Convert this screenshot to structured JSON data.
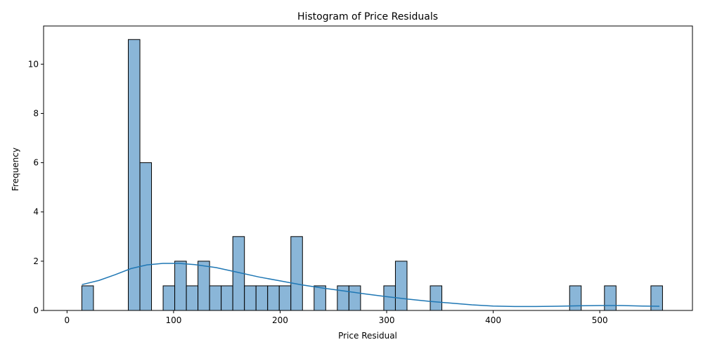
{
  "chart_data": {
    "type": "bar",
    "title": "Histogram of Price Residuals",
    "xlabel": "Price Residual",
    "ylabel": "Frequency",
    "xlim": [
      -22,
      587
    ],
    "ylim": [
      0,
      11.55
    ],
    "x_ticks": [
      0,
      100,
      200,
      300,
      400,
      500
    ],
    "y_ticks": [
      0,
      2,
      4,
      6,
      8,
      10
    ],
    "bin_width": 10.9,
    "bins": [
      {
        "left": 13.9,
        "count": 1
      },
      {
        "left": 57.5,
        "count": 11
      },
      {
        "left": 68.4,
        "count": 6
      },
      {
        "left": 90.2,
        "count": 1
      },
      {
        "left": 101.1,
        "count": 2
      },
      {
        "left": 112.0,
        "count": 1
      },
      {
        "left": 122.9,
        "count": 2
      },
      {
        "left": 133.8,
        "count": 1
      },
      {
        "left": 144.7,
        "count": 1
      },
      {
        "left": 155.6,
        "count": 3
      },
      {
        "left": 166.5,
        "count": 1
      },
      {
        "left": 177.4,
        "count": 1
      },
      {
        "left": 188.3,
        "count": 1
      },
      {
        "left": 199.2,
        "count": 1
      },
      {
        "left": 210.1,
        "count": 3
      },
      {
        "left": 231.9,
        "count": 1
      },
      {
        "left": 253.7,
        "count": 1
      },
      {
        "left": 264.6,
        "count": 1
      },
      {
        "left": 297.3,
        "count": 1
      },
      {
        "left": 308.2,
        "count": 2
      },
      {
        "left": 340.9,
        "count": 1
      },
      {
        "left": 471.7,
        "count": 1
      },
      {
        "left": 504.4,
        "count": 1
      },
      {
        "left": 548.0,
        "count": 1
      }
    ],
    "kde_curve": [
      {
        "x": 14,
        "y": 1.05
      },
      {
        "x": 30,
        "y": 1.22
      },
      {
        "x": 45,
        "y": 1.45
      },
      {
        "x": 60,
        "y": 1.7
      },
      {
        "x": 75,
        "y": 1.85
      },
      {
        "x": 90,
        "y": 1.91
      },
      {
        "x": 105,
        "y": 1.91
      },
      {
        "x": 120,
        "y": 1.86
      },
      {
        "x": 140,
        "y": 1.74
      },
      {
        "x": 160,
        "y": 1.55
      },
      {
        "x": 180,
        "y": 1.36
      },
      {
        "x": 200,
        "y": 1.2
      },
      {
        "x": 220,
        "y": 1.04
      },
      {
        "x": 240,
        "y": 0.91
      },
      {
        "x": 260,
        "y": 0.79
      },
      {
        "x": 280,
        "y": 0.67
      },
      {
        "x": 300,
        "y": 0.56
      },
      {
        "x": 320,
        "y": 0.46
      },
      {
        "x": 340,
        "y": 0.37
      },
      {
        "x": 360,
        "y": 0.3
      },
      {
        "x": 380,
        "y": 0.23
      },
      {
        "x": 400,
        "y": 0.18
      },
      {
        "x": 420,
        "y": 0.16
      },
      {
        "x": 440,
        "y": 0.16
      },
      {
        "x": 460,
        "y": 0.17
      },
      {
        "x": 480,
        "y": 0.19
      },
      {
        "x": 500,
        "y": 0.2
      },
      {
        "x": 520,
        "y": 0.2
      },
      {
        "x": 540,
        "y": 0.18
      },
      {
        "x": 556,
        "y": 0.17
      }
    ],
    "grid": false,
    "colors": {
      "bar_fill": "#8ab6d8",
      "bar_edge": "#000000",
      "kde_line": "#1f77b4"
    }
  }
}
